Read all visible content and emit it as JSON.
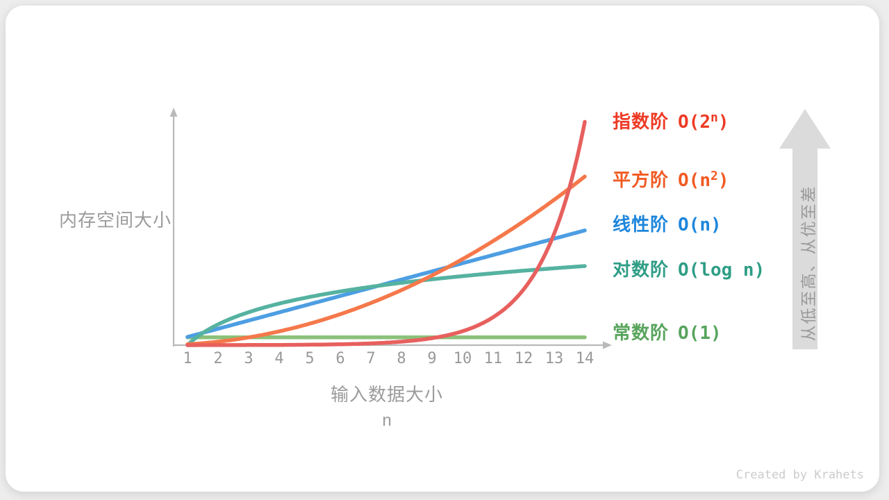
{
  "page": {
    "credit": "Created by Krahets"
  },
  "chart_data": {
    "type": "line",
    "title": "",
    "xlabel": "输入数据大小",
    "xlabel_unit": "n",
    "ylabel": "内存空间大小",
    "x_ticks": [
      1,
      2,
      3,
      4,
      5,
      6,
      7,
      8,
      9,
      10,
      11,
      12,
      13,
      14
    ],
    "x_range": [
      1,
      14
    ],
    "grid": false,
    "legend_position": "right",
    "axis_color": "#b9b9b9",
    "series": [
      {
        "name": "exponential",
        "label_cjk": "指数阶",
        "formula": "2^n",
        "formula_display": {
          "pre": "O(2",
          "sup": "n",
          "post": ")"
        },
        "values": [
          2,
          4,
          8,
          16,
          32,
          64,
          128,
          256,
          512,
          1024,
          2048,
          4096,
          8192,
          16384
        ],
        "curve_color": "#e7605e",
        "label_color": "#ee3a25",
        "height_frac": 0.94
      },
      {
        "name": "quadratic",
        "label_cjk": "平方阶",
        "formula": "n^2",
        "formula_display": {
          "pre": "O(n",
          "sup": "2",
          "post": ")"
        },
        "values": [
          1,
          4,
          9,
          16,
          25,
          36,
          49,
          64,
          81,
          100,
          121,
          144,
          169,
          196
        ],
        "curve_color": "#f5784b",
        "label_color": "#f15a22",
        "height_frac": 0.71
      },
      {
        "name": "linear",
        "label_cjk": "线性阶",
        "formula": "n",
        "formula_display": {
          "pre": "O(n",
          "sup": "",
          "post": ")"
        },
        "values": [
          1,
          2,
          3,
          4,
          5,
          6,
          7,
          8,
          9,
          10,
          11,
          12,
          13,
          14
        ],
        "curve_color": "#4d9ee2",
        "label_color": "#1e86dc",
        "height_frac": 0.483
      },
      {
        "name": "logarithmic",
        "label_cjk": "对数阶",
        "formula": "log n",
        "formula_display": {
          "pre": "O(log n",
          "sup": "",
          "post": ")"
        },
        "values": [
          0,
          1,
          1.58,
          2,
          2.32,
          2.58,
          2.81,
          3,
          3.17,
          3.32,
          3.46,
          3.58,
          3.7,
          3.81
        ],
        "curve_color": "#55b2a0",
        "label_color": "#2f9d86",
        "height_frac": 0.333
      },
      {
        "name": "constant",
        "label_cjk": "常数阶",
        "formula": "1",
        "formula_display": {
          "pre": "O(1",
          "sup": "",
          "post": ")"
        },
        "values": [
          1,
          1,
          1,
          1,
          1,
          1,
          1,
          1,
          1,
          1,
          1,
          1,
          1,
          1
        ],
        "curve_color": "#8bc17a",
        "label_color": "#57a45c",
        "height_frac": 0.033
      }
    ],
    "annotation_arrow": {
      "text": "从低至高、从优至差",
      "direction": "up",
      "fill_color": "#dbdbdb"
    }
  }
}
